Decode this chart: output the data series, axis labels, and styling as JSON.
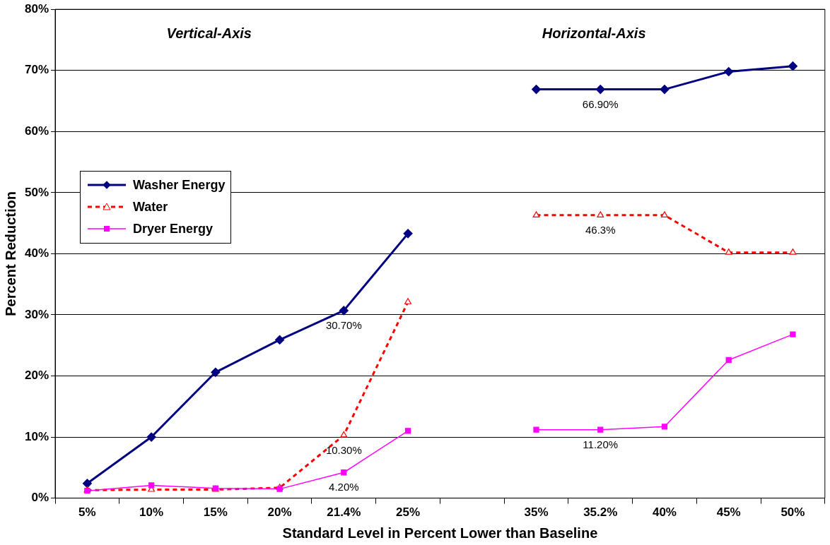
{
  "chart_data": {
    "type": "line",
    "xlabel": "Standard Level in Percent Lower than Baseline",
    "ylabel": "Percent Reduction",
    "categories": [
      "5%",
      "10%",
      "15%",
      "20%",
      "21.4%",
      "25%",
      null,
      "35%",
      "35.2%",
      "40%",
      "45%",
      "50%"
    ],
    "ylim": [
      0,
      80
    ],
    "yticks": [
      {
        "value": 0,
        "label": "0%"
      },
      {
        "value": 10,
        "label": "10%"
      },
      {
        "value": 20,
        "label": "20%"
      },
      {
        "value": 30,
        "label": "30%"
      },
      {
        "value": 40,
        "label": "40%"
      },
      {
        "value": 50,
        "label": "50%"
      },
      {
        "value": 60,
        "label": "60%"
      },
      {
        "value": 70,
        "label": "70%"
      },
      {
        "value": 80,
        "label": "80%"
      }
    ],
    "grid": "y",
    "legend": "left",
    "annotations": [
      "Vertical-Axis",
      "Horizontal-Axis"
    ],
    "series": [
      {
        "name": "Washer Energy",
        "color": "#000080",
        "marker": "diamond",
        "line_style": "solid",
        "values": [
          2.4,
          10,
          20.6,
          25.9,
          30.7,
          43.3,
          null,
          66.9,
          66.9,
          66.9,
          69.8,
          70.7
        ],
        "value_labels": [
          null,
          null,
          null,
          null,
          "30.70%",
          null,
          null,
          null,
          "66.90%",
          null,
          null,
          null
        ]
      },
      {
        "name": "Water",
        "color": "#ff0000",
        "marker": "triangle",
        "line_style": "dashed",
        "values": [
          1.3,
          1.4,
          1.4,
          1.7,
          10.3,
          32.1,
          null,
          46.3,
          46.3,
          46.3,
          40.2,
          40.2
        ],
        "value_labels": [
          null,
          null,
          null,
          null,
          "10.30%",
          null,
          null,
          null,
          "46.3%",
          null,
          null,
          null
        ]
      },
      {
        "name": "Dryer Energy",
        "color": "#ff00ff",
        "marker": "square",
        "line_style": "solid",
        "values": [
          1.2,
          2.1,
          1.6,
          1.5,
          4.2,
          11,
          null,
          11.2,
          11.2,
          11.7,
          22.6,
          26.8
        ],
        "value_labels": [
          null,
          null,
          null,
          null,
          "4.20%",
          null,
          null,
          null,
          "11.20%",
          null,
          null,
          null
        ]
      }
    ]
  }
}
